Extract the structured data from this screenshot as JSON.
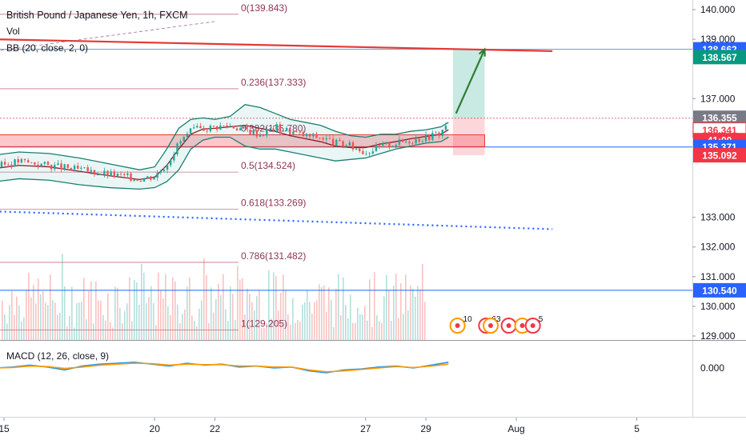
{
  "chart_data": [
    {
      "type": "line",
      "title": "British Pound / Japanese Yen, 1h, FXCM",
      "indicators": [
        "Vol",
        "BB (20, close, 2, 0)"
      ],
      "x_ticks": [
        "15",
        "20",
        "22",
        "27",
        "29",
        "Aug",
        "5"
      ],
      "y_ticks": [
        129.0,
        130.0,
        131.0,
        132.0,
        133.0,
        137.0,
        139.0,
        140.0
      ],
      "y_tick_labels": [
        "129.000",
        "130.000",
        "131.000",
        "132.000",
        "133.000",
        "137.000",
        "139.000",
        "140.000"
      ],
      "ylim": [
        128.95,
        140.3
      ],
      "grid": false,
      "price_series": {
        "days": [
          14.7,
          15.5,
          16.5,
          17.5,
          18.5,
          19.5,
          20.0,
          20.4,
          20.8,
          21.2,
          21.6,
          22.0,
          22.5,
          23.0,
          23.5,
          24.0,
          24.5,
          25.0,
          25.5,
          26.0,
          26.5,
          27.0,
          27.5,
          28.0,
          28.5,
          29.0,
          29.5,
          29.75
        ],
        "close": [
          134.7,
          134.9,
          134.75,
          134.6,
          134.45,
          134.3,
          134.4,
          134.8,
          135.5,
          135.9,
          136.0,
          136.05,
          136.1,
          135.95,
          135.8,
          136.05,
          135.9,
          135.75,
          135.7,
          135.5,
          135.4,
          135.2,
          135.4,
          135.5,
          135.6,
          135.7,
          135.85,
          136.3
        ]
      },
      "bollinger": {
        "upper": [
          135.1,
          135.2,
          135.15,
          135.0,
          134.8,
          134.6,
          134.7,
          135.3,
          136.0,
          136.3,
          136.35,
          136.3,
          136.4,
          136.8,
          136.7,
          136.5,
          136.3,
          136.2,
          136.1,
          135.9,
          135.75,
          135.7,
          135.8,
          135.8,
          135.9,
          135.95,
          136.05,
          136.2
        ],
        "lower": [
          134.2,
          134.3,
          134.25,
          134.1,
          134.0,
          133.95,
          134.0,
          134.2,
          134.6,
          135.3,
          135.6,
          135.7,
          135.7,
          135.4,
          135.3,
          135.3,
          135.2,
          135.1,
          135.0,
          134.9,
          134.95,
          135.0,
          135.15,
          135.3,
          135.4,
          135.5,
          135.55,
          135.7
        ]
      },
      "fibonacci": [
        {
          "label": "0(139.843)",
          "price": 139.843
        },
        {
          "label": "0.236(137.333)",
          "price": 137.333
        },
        {
          "label": "0.382(135.780)",
          "price": 135.78
        },
        {
          "label": "0.5(134.524)",
          "price": 134.524
        },
        {
          "label": "0.618(133.269)",
          "price": 133.269
        },
        {
          "label": "0.786(131.482)",
          "price": 131.482
        },
        {
          "label": "1(129.205)",
          "price": 129.205
        }
      ],
      "horizontal_lines": [
        {
          "price": 138.662,
          "color": "#5b9bd5"
        },
        {
          "price": 136.341,
          "color": "#e57373",
          "dashed": true
        },
        {
          "price": 135.371,
          "color": "#2962ff"
        },
        {
          "price": 130.54,
          "color": "#2962ff"
        }
      ],
      "trend_lines": [
        {
          "from": [
            14.7,
            139.0
          ],
          "to": [
            33.2,
            138.6
          ],
          "color": "#e53935"
        },
        {
          "from": [
            14.7,
            133.2
          ],
          "to": [
            33.2,
            132.6
          ],
          "color": "#2962ff",
          "dotted": true
        },
        {
          "from": [
            14.7,
            138.6
          ],
          "to": [
            22.0,
            139.6
          ],
          "color": "#9e6b8a",
          "dashed": true
        }
      ],
      "long_position": {
        "entry": 136.341,
        "target": 138.662,
        "stop": 135.092,
        "start_day": 29.9,
        "end_day": 30.95
      },
      "support_zone": {
        "top": 135.78,
        "bottom": 135.38,
        "start_day": 14.7,
        "end_day": 30.95
      },
      "projection_arrow": {
        "from": [
          30.0,
          136.5
        ],
        "to": [
          30.95,
          138.662
        ],
        "color": "#2e7d32"
      },
      "price_labels": [
        {
          "text": "138.662",
          "price": 138.662,
          "bg": "#2962ff",
          "color": "#ffffff"
        },
        {
          "text": "138.567",
          "price": 138.4,
          "bg": "#089981",
          "color": "#ffffff"
        },
        {
          "text": "136.355",
          "price": 136.355,
          "bg": "#787b86",
          "color": "#ffffff"
        },
        {
          "text": "136.341",
          "price": 135.94,
          "bg": "#ffffff",
          "color": "#f23645",
          "border": "#f23645"
        },
        {
          "text": "41:00",
          "price": 135.6,
          "bg": "#f23645",
          "color": "#ffffff"
        },
        {
          "text": "135.371",
          "price": 135.371,
          "bg": "#2962ff",
          "color": "#ffffff"
        },
        {
          "text": "135.092",
          "price": 135.092,
          "bg": "#f23645",
          "color": "#ffffff"
        },
        {
          "text": "130.540",
          "price": 130.54,
          "bg": "#2962ff",
          "color": "#ffffff"
        }
      ],
      "events": [
        {
          "day": 30.05,
          "label": "10"
        },
        {
          "day": 31.0,
          "label": "6"
        },
        {
          "day": 31.15,
          "label": "3"
        },
        {
          "day": 31.75,
          "label": ""
        },
        {
          "day": 32.2,
          "label": ""
        },
        {
          "day": 32.55,
          "label": "5"
        }
      ]
    },
    {
      "type": "line",
      "title": "MACD (12, 26, close, 9)",
      "y_ticks": [
        0.0
      ],
      "y_tick_labels": [
        "0.000"
      ],
      "series": [
        {
          "color": "#2196f3",
          "values": [
            0.0,
            0.01,
            0.03,
            0.01,
            -0.02,
            0.02,
            0.04,
            0.05,
            0.06,
            0.04,
            0.02,
            0.05,
            0.03,
            0.04,
            0.01,
            0.02,
            0.0,
            0.01,
            -0.03,
            -0.05,
            -0.02,
            -0.01,
            0.01,
            0.02,
            0.0,
            0.03,
            0.06
          ]
        },
        {
          "color": "#ff9800",
          "values": [
            0.0,
            0.005,
            0.02,
            0.015,
            -0.005,
            0.01,
            0.03,
            0.04,
            0.05,
            0.045,
            0.03,
            0.04,
            0.035,
            0.035,
            0.02,
            0.02,
            0.01,
            0.01,
            -0.02,
            -0.04,
            -0.03,
            -0.015,
            0.0,
            0.015,
            0.005,
            0.02,
            0.04
          ]
        }
      ]
    }
  ]
}
